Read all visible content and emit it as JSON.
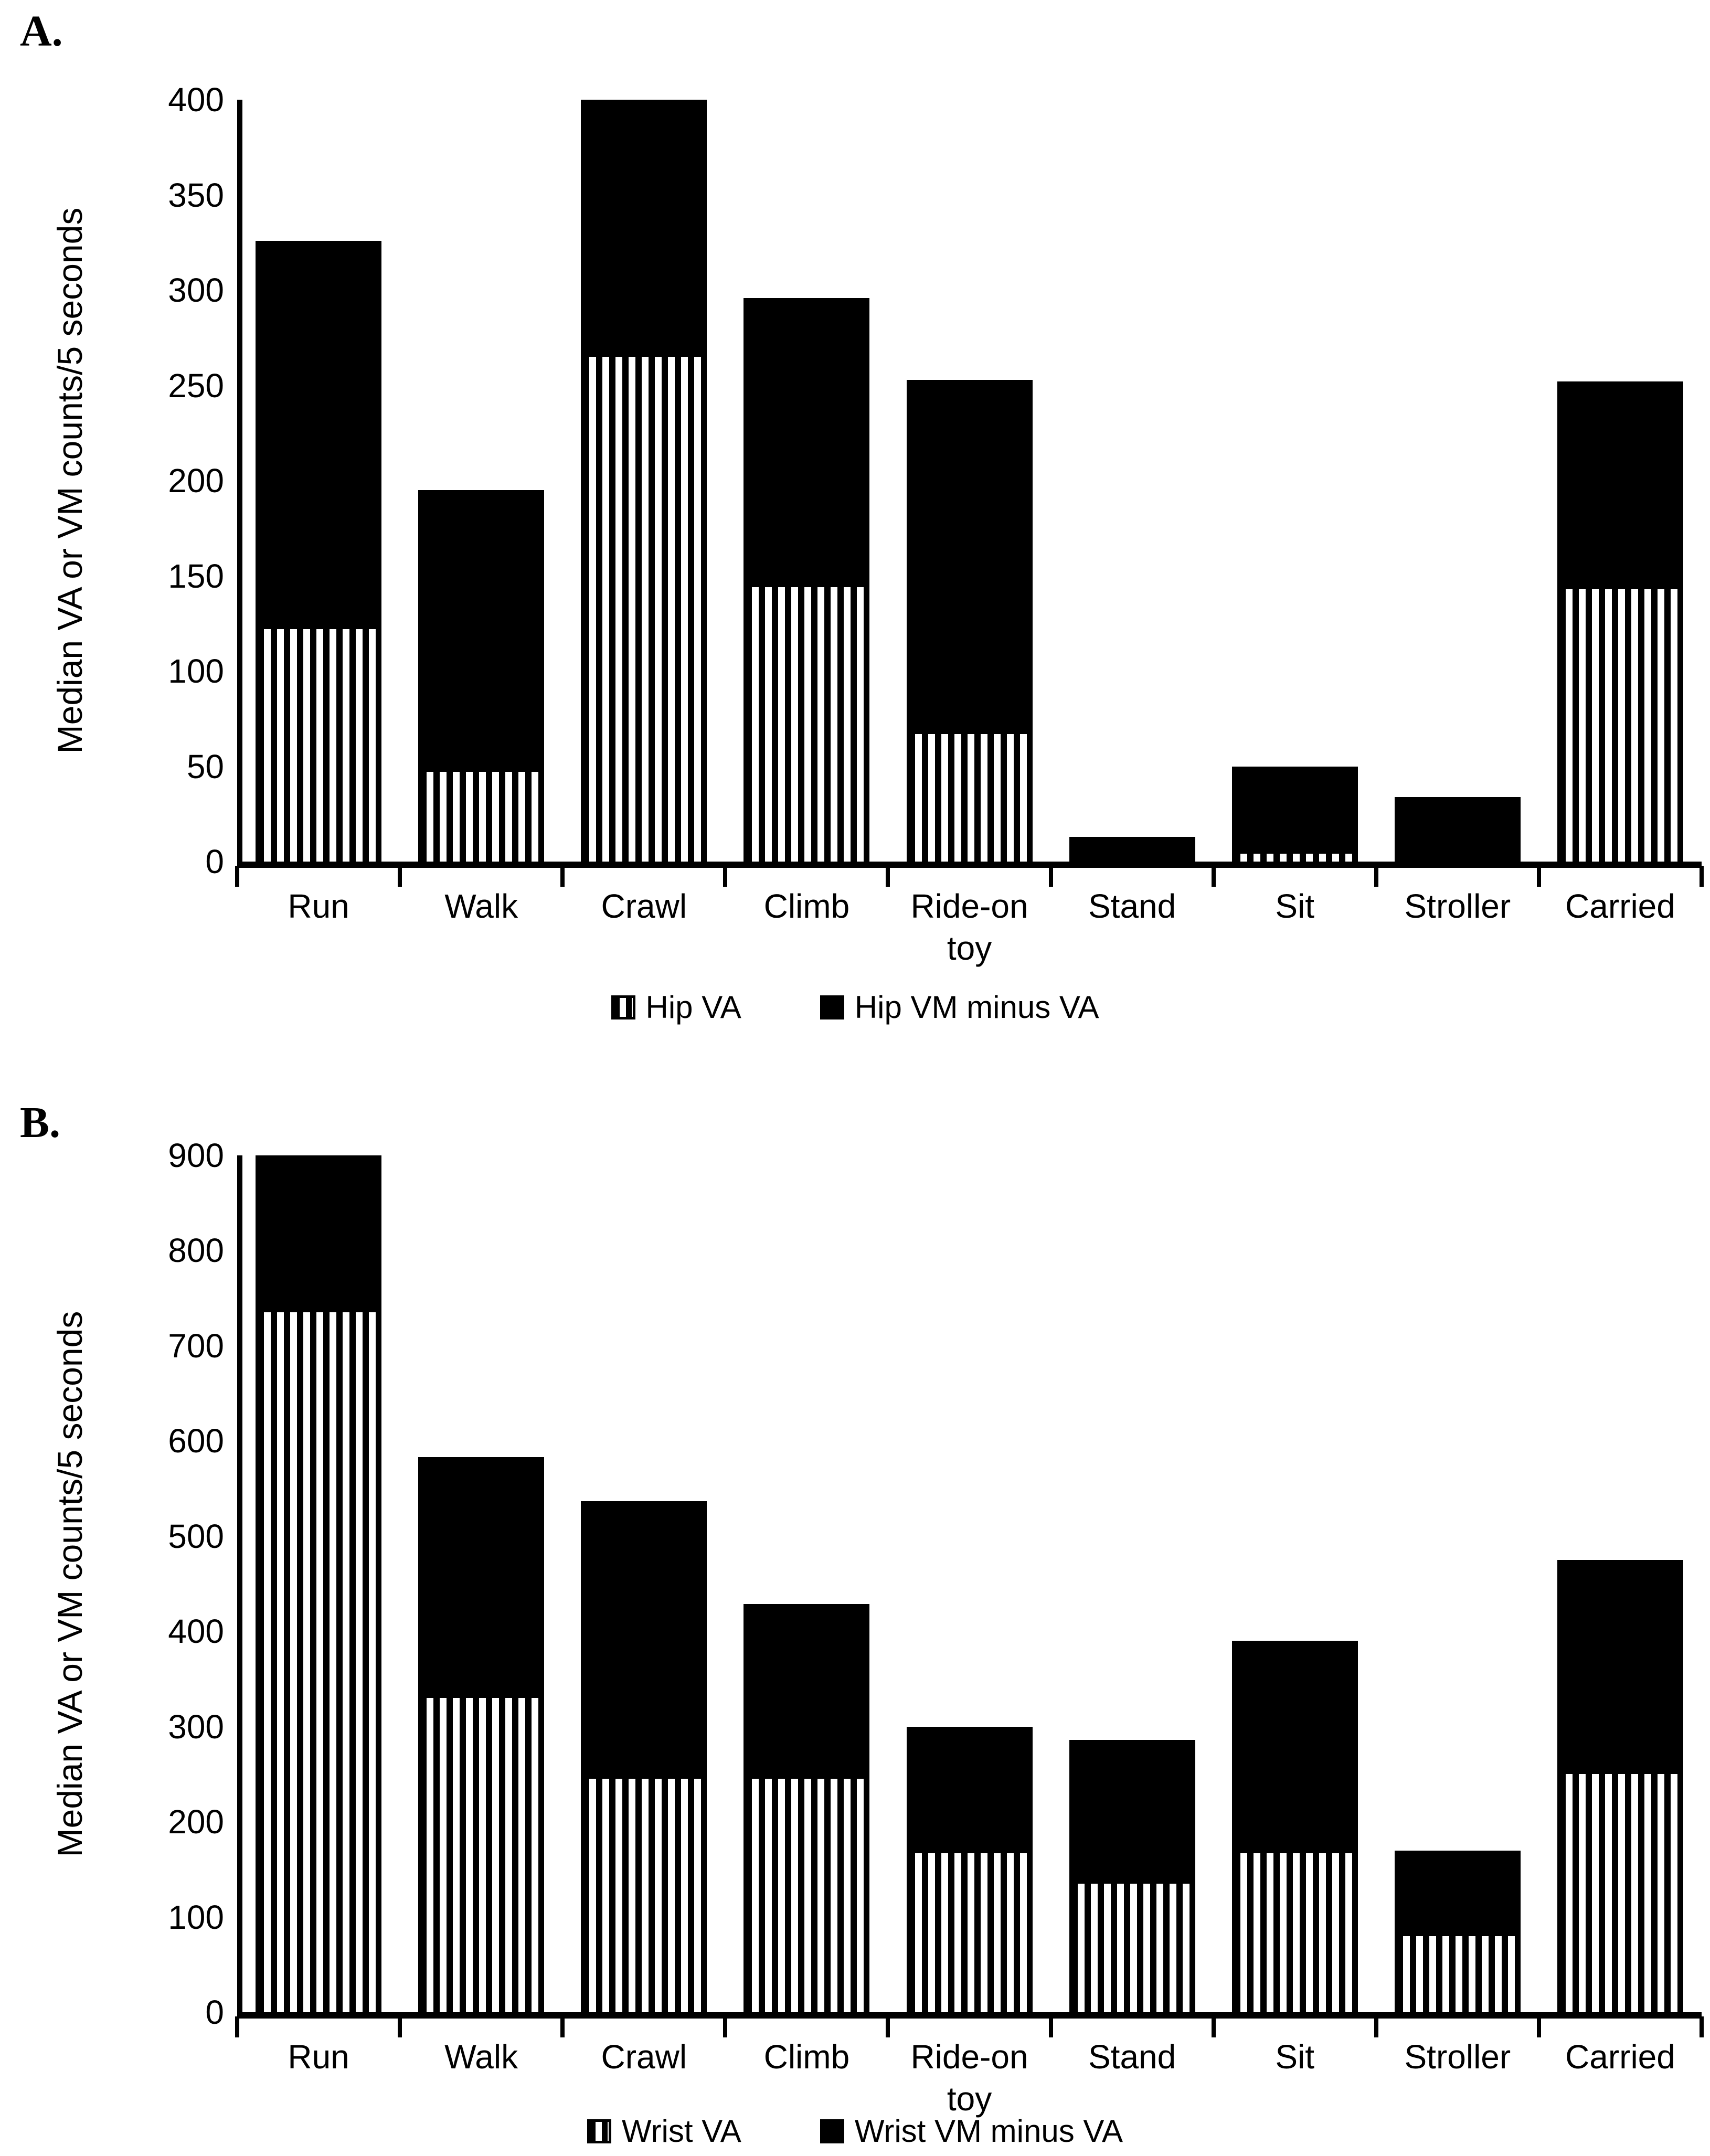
{
  "figure_background": "#ffffff",
  "bar_color": "#000000",
  "chart_data": [
    {
      "panel": "A.",
      "type": "bar",
      "stacked": true,
      "ylabel": "Median VA or VM counts/5 seconds",
      "ylim": [
        0,
        400
      ],
      "ytick_step": 50,
      "yticks": [
        0,
        50,
        100,
        150,
        200,
        250,
        300,
        350,
        400
      ],
      "grid": false,
      "legend_position": "bottom",
      "categories": [
        "Run",
        "Walk",
        "Crawl",
        "Climb",
        "Ride-on toy",
        "Stand",
        "Sit",
        "Stroller",
        "Carried"
      ],
      "series": [
        {
          "name": "Hip VA",
          "style": "vertical-stripes",
          "values": [
            122,
            47,
            265,
            144,
            67,
            0,
            4,
            0,
            143
          ]
        },
        {
          "name": "Hip VM minus VA",
          "style": "solid",
          "values": [
            204,
            148,
            135,
            152,
            186,
            13,
            46,
            34,
            109
          ]
        }
      ],
      "stack_totals": [
        326,
        195,
        400,
        296,
        253,
        13,
        50,
        34,
        252
      ]
    },
    {
      "panel": "B.",
      "type": "bar",
      "stacked": true,
      "ylabel": "Median VA or VM counts/5 seconds",
      "ylim": [
        0,
        900
      ],
      "ytick_step": 100,
      "yticks": [
        0,
        100,
        200,
        300,
        400,
        500,
        600,
        700,
        800,
        900
      ],
      "grid": false,
      "legend_position": "bottom",
      "categories": [
        "Run",
        "Walk",
        "Crawl",
        "Climb",
        "Ride-on toy",
        "Stand",
        "Sit",
        "Stroller",
        "Carried"
      ],
      "series": [
        {
          "name": "Wrist VA",
          "style": "vertical-stripes",
          "values": [
            735,
            330,
            245,
            245,
            167,
            135,
            167,
            80,
            250
          ]
        },
        {
          "name": "Wrist VM minus VA",
          "style": "solid",
          "values": [
            165,
            253,
            292,
            184,
            133,
            151,
            223,
            90,
            225
          ]
        }
      ],
      "stack_totals": [
        900,
        583,
        537,
        429,
        300,
        286,
        390,
        170,
        475
      ]
    }
  ]
}
